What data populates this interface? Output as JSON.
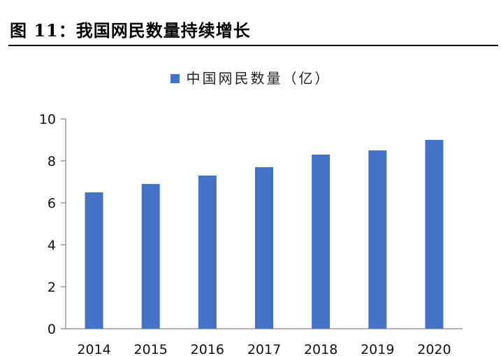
{
  "figure": {
    "title": "图 11：我国网民数量持续增长"
  },
  "colors": {
    "bar": "#4472C4",
    "axis": "#9a9a9a",
    "text": "#111111"
  },
  "chart_data": {
    "type": "bar",
    "title": "",
    "xlabel": "",
    "ylabel": "",
    "legend_position": "top-center",
    "grid": false,
    "categories": [
      "2014",
      "2015",
      "2016",
      "2017",
      "2018",
      "2019",
      "2020"
    ],
    "series": [
      {
        "name": "中国网民数量（亿）",
        "values": [
          6.5,
          6.9,
          7.3,
          7.7,
          8.3,
          8.5,
          9.0
        ]
      }
    ],
    "ylim": [
      0,
      10
    ],
    "yticks": [
      0,
      2,
      4,
      6,
      8,
      10
    ]
  }
}
